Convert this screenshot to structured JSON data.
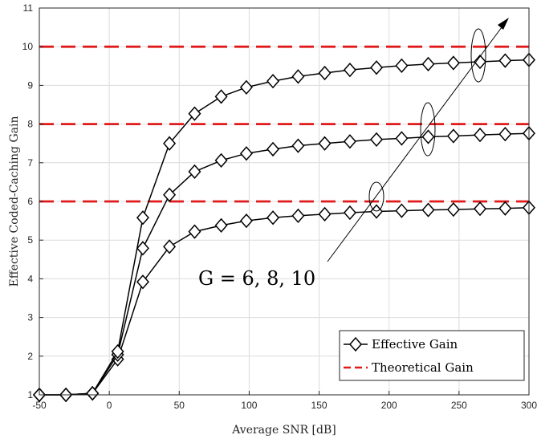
{
  "chart_data": {
    "type": "line",
    "xlabel": "Average SNR [dB]",
    "ylabel": "Effective Coded-Caching Gain",
    "xlim": [
      -50,
      300
    ],
    "ylim": [
      1,
      11
    ],
    "xticks": [
      -50,
      0,
      50,
      100,
      150,
      200,
      250,
      300
    ],
    "yticks": [
      1,
      2,
      3,
      4,
      5,
      6,
      7,
      8,
      9,
      10,
      11
    ],
    "grid": true,
    "legend_position": "bottom-right",
    "legend": {
      "effective": "Effective Gain",
      "theoretical": "Theoretical Gain"
    },
    "annotation": "G = 6, 8, 10",
    "x": [
      -50,
      -31,
      -12,
      6,
      24,
      43,
      61,
      80,
      98,
      117,
      135,
      154,
      172,
      191,
      209,
      228,
      246,
      265,
      283,
      300
    ],
    "series": [
      {
        "group": "effective",
        "G": 6,
        "values": [
          1.0,
          1.0,
          1.04,
          1.92,
          3.92,
          4.83,
          5.22,
          5.38,
          5.5,
          5.58,
          5.63,
          5.67,
          5.71,
          5.74,
          5.76,
          5.78,
          5.79,
          5.81,
          5.82,
          5.84
        ]
      },
      {
        "group": "effective",
        "G": 8,
        "values": [
          1.0,
          1.0,
          1.04,
          2.04,
          4.79,
          6.17,
          6.77,
          7.06,
          7.24,
          7.35,
          7.44,
          7.5,
          7.55,
          7.6,
          7.63,
          7.67,
          7.69,
          7.72,
          7.74,
          7.76
        ]
      },
      {
        "group": "effective",
        "G": 10,
        "values": [
          1.0,
          1.0,
          1.04,
          2.12,
          5.58,
          7.5,
          8.27,
          8.71,
          8.95,
          9.11,
          9.23,
          9.32,
          9.4,
          9.46,
          9.51,
          9.55,
          9.58,
          9.61,
          9.64,
          9.66
        ]
      },
      {
        "group": "theoretical",
        "G": 6,
        "value": 6
      },
      {
        "group": "theoretical",
        "G": 8,
        "value": 8
      },
      {
        "group": "theoretical",
        "G": 10,
        "value": 10
      }
    ],
    "colors": {
      "effective": "#000000",
      "theoretical": "#e01a1a"
    }
  }
}
